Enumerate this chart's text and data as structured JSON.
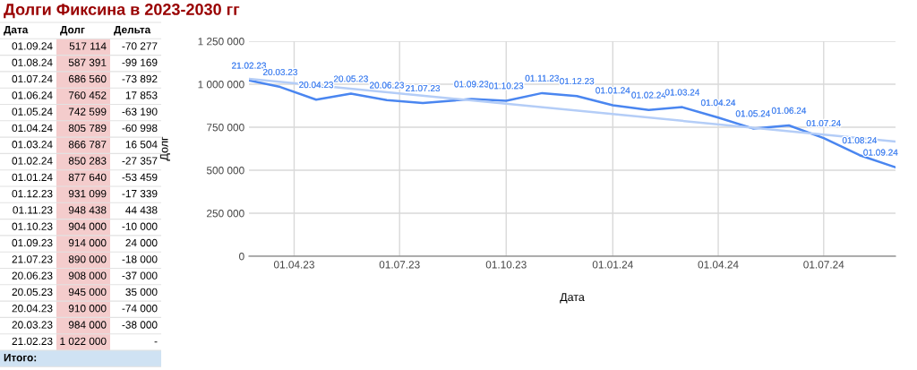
{
  "chart_data": [
    {
      "type": "other",
      "title": "Долги Фиксина в 2023-2030 гг",
      "annotations": [
        "Дата",
        "Долг",
        "Дельта",
        "01.09.24",
        "517 114",
        "-70 277",
        "01.08.24",
        "587 391",
        "-99 169",
        "01.07.24",
        "686 560",
        "-73 892",
        "01.06.24",
        "760 452",
        "17 853",
        "01.05.24",
        "742 599",
        "-63 190",
        "01.04.24",
        "805 789",
        "-60 998",
        "01.03.24",
        "866 787",
        "16 504",
        "01.02.24",
        "850 283",
        "-27 357",
        "01.01.24",
        "877 640",
        "-53 459",
        "01.12.23",
        "931 099",
        "-17 339",
        "01.11.23",
        "948 438",
        "44 438",
        "01.10.23",
        "904 000",
        "-10 000",
        "01.09.23",
        "914 000",
        "24 000",
        "21.07.23",
        "890 000",
        "-18 000",
        "20.06.23",
        "908 000",
        "-37 000",
        "20.05.23",
        "945 000",
        "35 000",
        "20.04.23",
        "910 000",
        "-74 000",
        "20.03.23",
        "984 000",
        "-38 000",
        "21.02.23",
        "1 022 000",
        "-",
        "Итого:"
      ]
    },
    {
      "type": "line",
      "xlabel": "Дата",
      "ylabel": "Долг",
      "series": [
        {
          "color": "#4a86f0",
          "x": [
            "2023-02-21",
            "2023-03-20",
            "2023-04-20",
            "2023-05-20",
            "2023-06-20",
            "2023-07-21",
            "2023-09-01",
            "2023-10-01",
            "2023-11-01",
            "2023-12-01",
            "2024-01-01",
            "2024-02-01",
            "2024-03-01",
            "2024-04-01",
            "2024-05-01",
            "2024-06-01",
            "2024-07-01",
            "2024-08-01",
            "2024-09-01"
          ],
          "values": [
            1022000,
            984000,
            910000,
            945000,
            908000,
            890000,
            914000,
            904000,
            948438,
            931099,
            877640,
            850283,
            866787,
            805789,
            742599,
            760452,
            686560,
            587391,
            517114
          ],
          "value_labels": [
            "21.02.23",
            "20.03.23",
            "20.04.23",
            "20.05.23",
            "20.06.23",
            "21.07.23",
            "01.09.23",
            "01.10.23",
            "01.11.23",
            "01.12.23",
            "01.01.24",
            "01.02.24",
            "01.03.24",
            "01.04.24",
            "01.05.24",
            "01.06.24",
            "01.07.24",
            "01.08.24",
            "01.09.24"
          ]
        },
        {
          "color": "#b4cdf7",
          "x": [
            "2023-02-21",
            "2024-09-01"
          ],
          "values": [
            1031000,
            667000
          ]
        }
      ],
      "xlim": [
        "2023-02-21",
        "2024-09-01"
      ],
      "xticks": [
        {
          "value": "2023-04-01",
          "label": "01.04.23"
        },
        {
          "value": "2023-07-01",
          "label": "01.07.23"
        },
        {
          "value": "2023-10-01",
          "label": "01.10.23"
        },
        {
          "value": "2024-01-01",
          "label": "01.01.24"
        },
        {
          "value": "2024-04-01",
          "label": "01.04.24"
        },
        {
          "value": "2024-07-01",
          "label": "01.07.24"
        }
      ],
      "ylim": [
        0,
        1250000
      ],
      "yticks": [
        {
          "value": 0,
          "label": "0"
        },
        {
          "value": 250000,
          "label": "250 000"
        },
        {
          "value": 500000,
          "label": "500 000"
        },
        {
          "value": 750000,
          "label": "750 000"
        },
        {
          "value": 1000000,
          "label": "1 000 000"
        },
        {
          "value": 1250000,
          "label": "1 250 000"
        }
      ],
      "grid": true
    }
  ]
}
